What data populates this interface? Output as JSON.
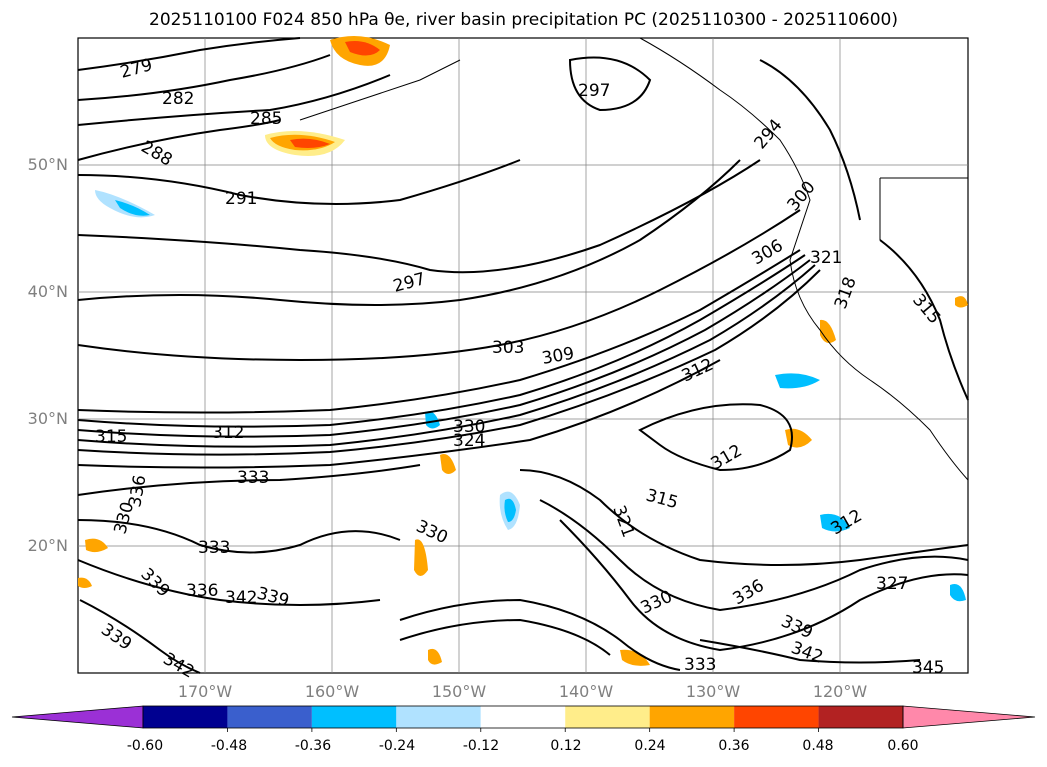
{
  "title": "2025110100 F024 850 hPa θe, river basin precipitation PC (2025110300 - 2025110600)",
  "lat_labels": [
    "50°N",
    "40°N",
    "30°N",
    "20°N"
  ],
  "lon_labels": [
    "170°W",
    "160°W",
    "150°W",
    "140°W",
    "130°W",
    "120°W"
  ],
  "contour_labels": [
    "279",
    "282",
    "285",
    "288",
    "291",
    "297",
    "297",
    "294",
    "303",
    "309",
    "312",
    "315",
    "300",
    "306",
    "321",
    "318",
    "315",
    "330",
    "324",
    "312",
    "312",
    "333",
    "336",
    "330",
    "333",
    "330",
    "315",
    "321",
    "339",
    "336",
    "342",
    "339",
    "339",
    "342",
    "330",
    "333",
    "336",
    "339",
    "342",
    "312",
    "327",
    "345"
  ],
  "colorbar": {
    "tick_labels": [
      "-0.60",
      "-0.48",
      "-0.36",
      "-0.24",
      "-0.12",
      "0.12",
      "0.24",
      "0.36",
      "0.48",
      "0.60"
    ],
    "colors": [
      "#9b30d6",
      "#000090",
      "#3a5fcd",
      "#00bfff",
      "#b0e2ff",
      "#ffffff",
      "#ffed8a",
      "#ffa500",
      "#ff4500",
      "#b22222",
      "#ff88aa"
    ]
  },
  "colors": {
    "contour": "#000000",
    "gridline": "#808080",
    "coastline": "#000000"
  }
}
